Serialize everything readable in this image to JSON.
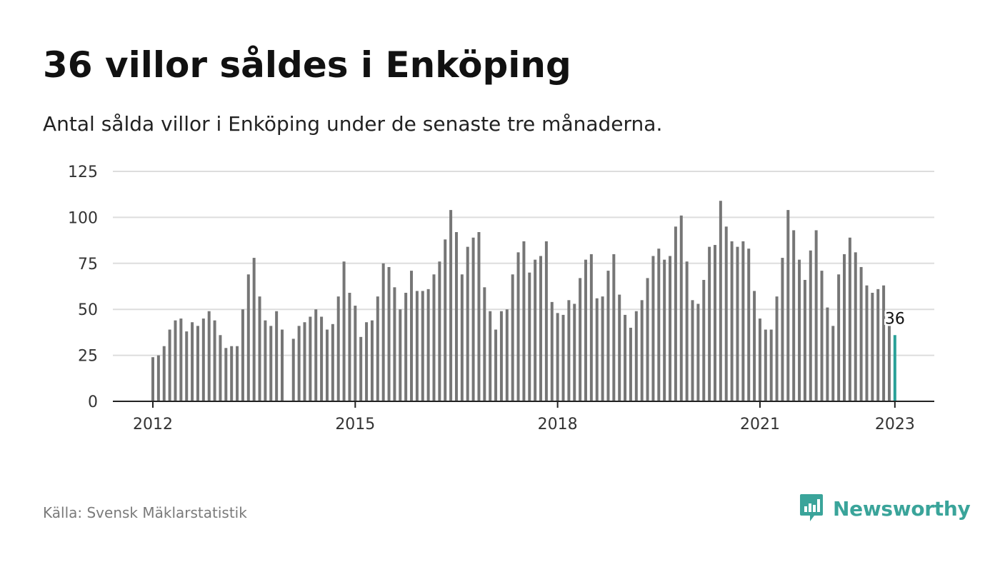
{
  "title": "36 villor såldes i Enköping",
  "subtitle": "Antal sålda villor i Enköping under de senaste tre månaderna.",
  "source": "Källa: Svensk Mäklarstatistik",
  "brand": {
    "name": "Newsworthy",
    "icon": "newsworthy-logo-icon"
  },
  "colors": {
    "bar": "#767676",
    "highlight": "#2aa198",
    "grid": "#dddddd",
    "axis": "#222222",
    "brand": "#3aa49a"
  },
  "chart_data": {
    "type": "bar",
    "title": "36 villor såldes i Enköping",
    "subtitle": "Antal sålda villor i Enköping under de senaste tre månaderna.",
    "xlabel": "",
    "ylabel": "",
    "ylim": [
      0,
      125
    ],
    "yticks": [
      0,
      25,
      50,
      75,
      100,
      125
    ],
    "xticks": [
      "2012",
      "2015",
      "2018",
      "2021",
      "2023"
    ],
    "grid": true,
    "legend": "none",
    "x_start": "2012-01",
    "x_end": "2023-01",
    "values": [
      24,
      25,
      30,
      39,
      44,
      45,
      38,
      43,
      41,
      45,
      49,
      44,
      36,
      29,
      30,
      30,
      50,
      69,
      78,
      57,
      44,
      41,
      49,
      39,
      null,
      34,
      41,
      43,
      46,
      50,
      46,
      39,
      42,
      57,
      76,
      59,
      52,
      35,
      43,
      44,
      57,
      75,
      73,
      62,
      50,
      59,
      71,
      60,
      60,
      61,
      69,
      76,
      88,
      104,
      92,
      69,
      84,
      89,
      92,
      62,
      49,
      39,
      49,
      50,
      69,
      81,
      87,
      70,
      77,
      79,
      87,
      54,
      48,
      47,
      55,
      53,
      67,
      77,
      80,
      56,
      57,
      71,
      80,
      58,
      47,
      40,
      49,
      55,
      67,
      79,
      83,
      77,
      79,
      95,
      101,
      76,
      55,
      53,
      66,
      84,
      85,
      109,
      95,
      87,
      84,
      87,
      83,
      60,
      45,
      39,
      39,
      57,
      78,
      104,
      93,
      77,
      66,
      82,
      93,
      71,
      51,
      41,
      69,
      80,
      89,
      81,
      73,
      63,
      59,
      61,
      63,
      41,
      36
    ],
    "highlight": {
      "date": "2023-01",
      "value": 36,
      "label": "36"
    }
  }
}
